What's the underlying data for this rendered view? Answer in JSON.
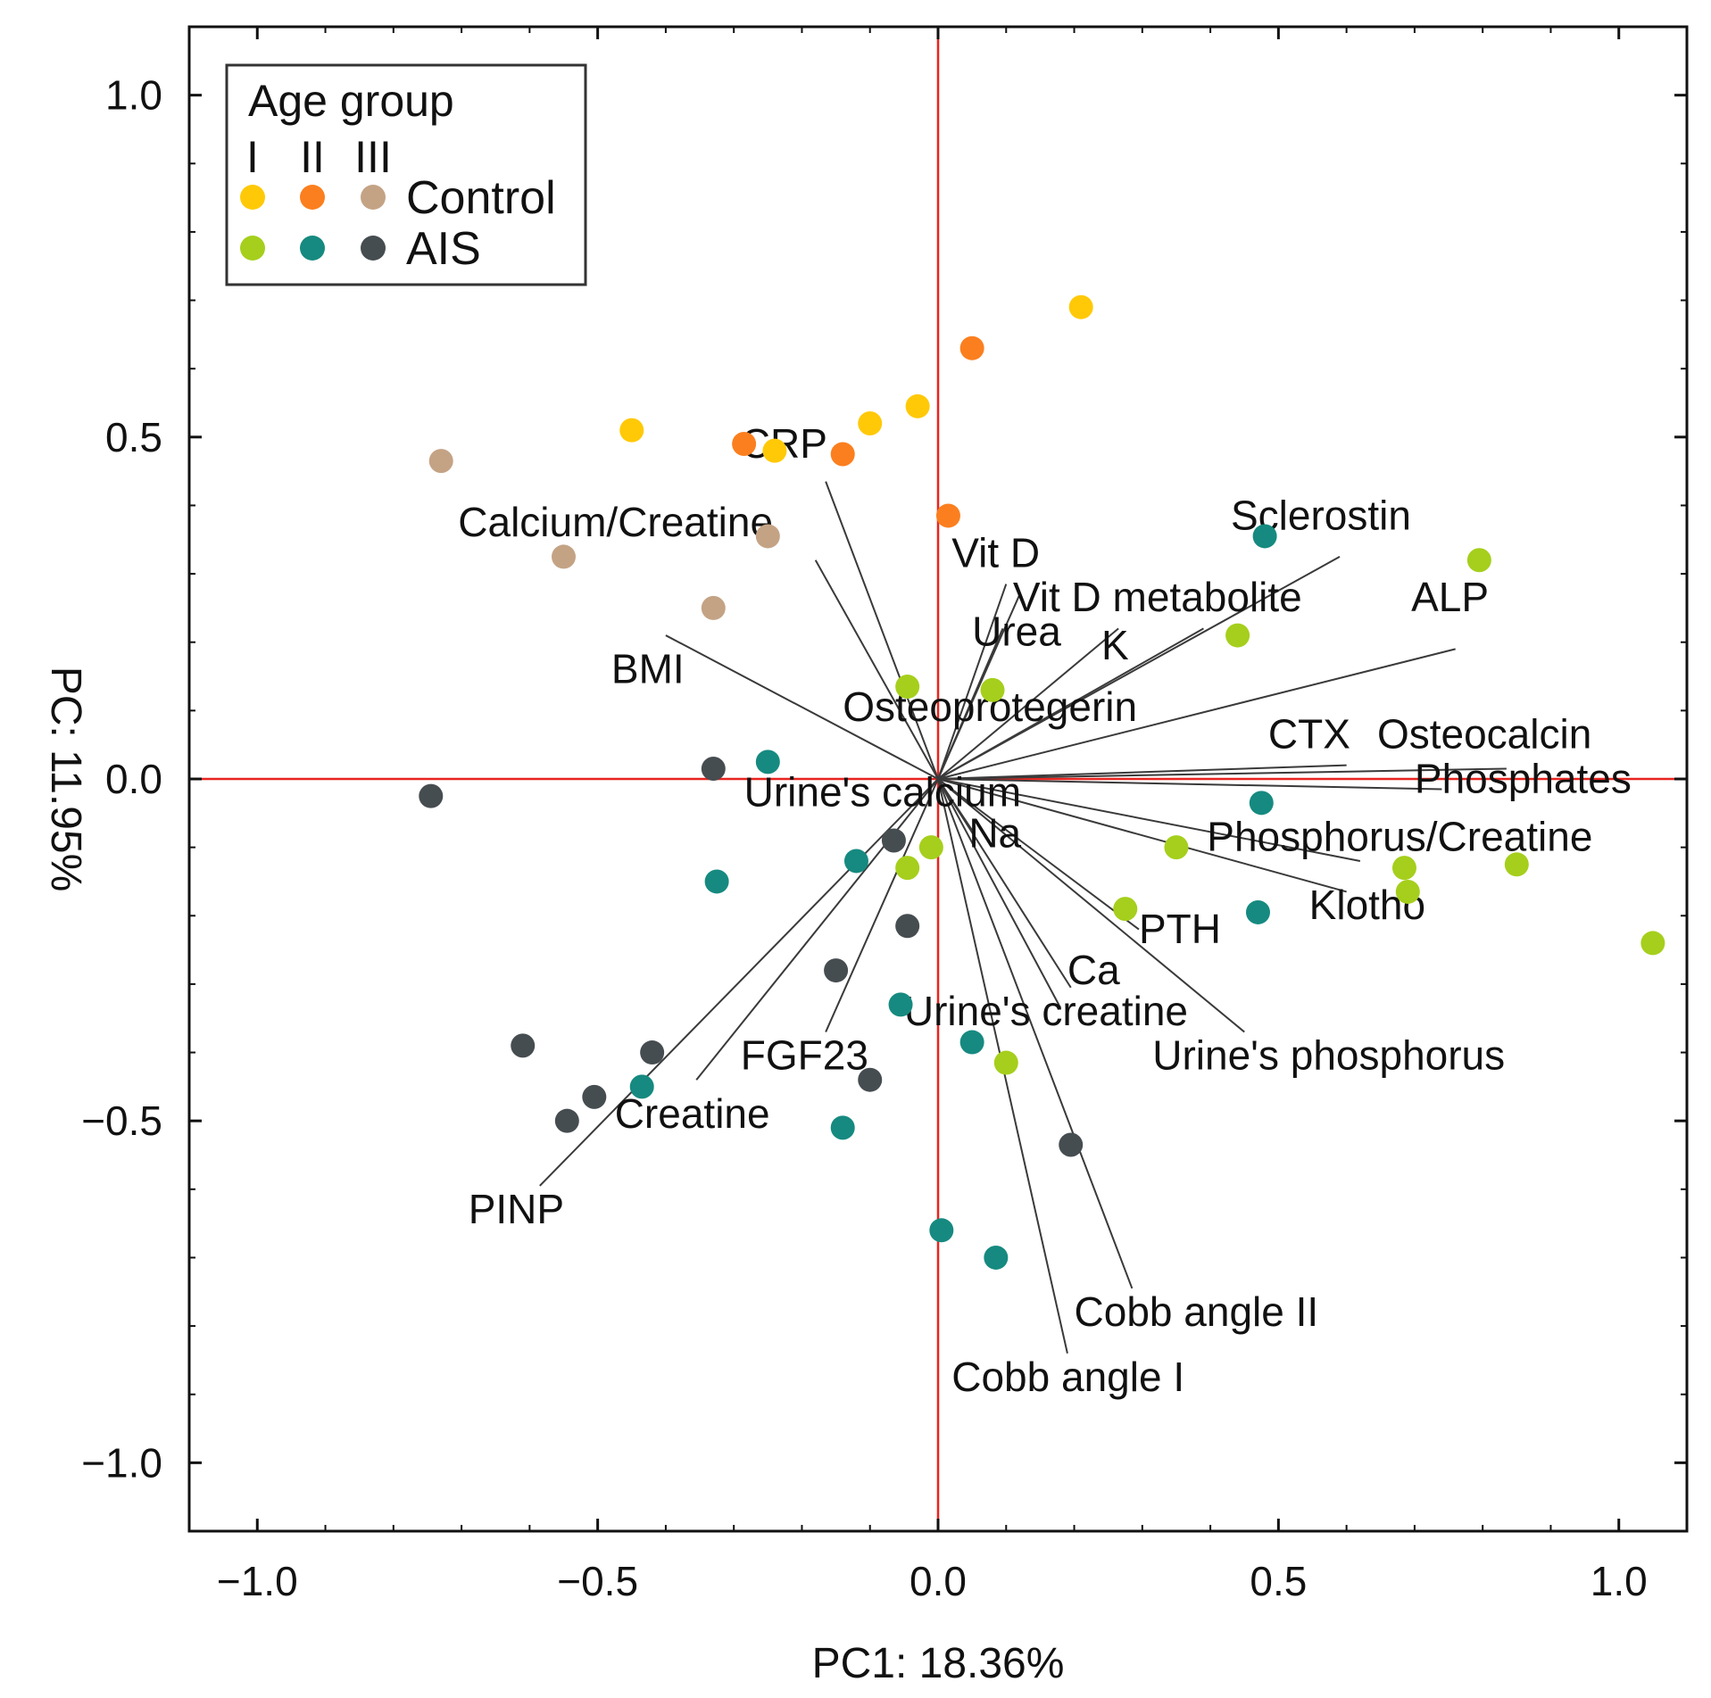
{
  "chart_data": {
    "type": "scatter",
    "subtype": "pca-biplot",
    "xlabel": "PC1: 18.36%",
    "ylabel": "PC: 11.95%",
    "xlim": [
      -1.1,
      1.1
    ],
    "ylim": [
      -1.1,
      1.1
    ],
    "x_ticks": [
      {
        "value": -1.0,
        "label": "−1.0"
      },
      {
        "value": -0.5,
        "label": "−0.5"
      },
      {
        "value": 0.0,
        "label": "0.0"
      },
      {
        "value": 0.5,
        "label": "0.5"
      },
      {
        "value": 1.0,
        "label": "1.0"
      }
    ],
    "y_ticks": [
      {
        "value": 1.0,
        "label": "1.0"
      },
      {
        "value": 0.5,
        "label": "0.5"
      },
      {
        "value": 0.0,
        "label": "0.0"
      },
      {
        "value": -0.5,
        "label": "−0.5"
      },
      {
        "value": -1.0,
        "label": "−1.0"
      }
    ],
    "origin_line_color": "#e8241f",
    "loading_line_color": "#3a3a3a",
    "legend": {
      "title": "Age group",
      "columns": [
        "I",
        "II",
        "III"
      ],
      "rows": [
        {
          "label": "Control",
          "colors": [
            "#ffc907",
            "#fb7f1f",
            "#c4a385"
          ]
        },
        {
          "label": "AIS",
          "colors": [
            "#a5cf1c",
            "#168a80",
            "#464d51"
          ]
        }
      ],
      "position": "top-left"
    },
    "series": [
      {
        "name": "Control I",
        "color": "#ffc907",
        "points": [
          [
            0.21,
            0.69
          ],
          [
            -0.45,
            0.51
          ],
          [
            -0.1,
            0.52
          ],
          [
            -0.03,
            0.545
          ],
          [
            -0.24,
            0.48
          ]
        ]
      },
      {
        "name": "Control II",
        "color": "#fb7f1f",
        "points": [
          [
            0.05,
            0.63
          ],
          [
            -0.285,
            0.49
          ],
          [
            -0.14,
            0.475
          ],
          [
            0.015,
            0.385
          ]
        ]
      },
      {
        "name": "Control III",
        "color": "#c4a385",
        "points": [
          [
            -0.73,
            0.465
          ],
          [
            -0.55,
            0.325
          ],
          [
            -0.25,
            0.355
          ],
          [
            -0.33,
            0.25
          ]
        ]
      },
      {
        "name": "AIS I",
        "color": "#a5cf1c",
        "points": [
          [
            0.795,
            0.32
          ],
          [
            0.44,
            0.21
          ],
          [
            -0.045,
            0.135
          ],
          [
            0.08,
            0.13
          ],
          [
            -0.01,
            -0.1
          ],
          [
            -0.045,
            -0.13
          ],
          [
            0.35,
            -0.1
          ],
          [
            0.685,
            -0.13
          ],
          [
            0.85,
            -0.125
          ],
          [
            0.69,
            -0.165
          ],
          [
            0.275,
            -0.19
          ],
          [
            1.05,
            -0.24
          ],
          [
            0.1,
            -0.415
          ]
        ]
      },
      {
        "name": "AIS II",
        "color": "#168a80",
        "points": [
          [
            0.48,
            0.355
          ],
          [
            -0.25,
            0.025
          ],
          [
            0.475,
            -0.035
          ],
          [
            -0.12,
            -0.12
          ],
          [
            -0.325,
            -0.15
          ],
          [
            0.47,
            -0.195
          ],
          [
            -0.055,
            -0.33
          ],
          [
            0.05,
            -0.385
          ],
          [
            -0.435,
            -0.45
          ],
          [
            -0.14,
            -0.51
          ],
          [
            0.005,
            -0.66
          ],
          [
            0.085,
            -0.7
          ]
        ]
      },
      {
        "name": "AIS III",
        "color": "#464d51",
        "points": [
          [
            -0.33,
            0.015
          ],
          [
            -0.745,
            -0.025
          ],
          [
            -0.065,
            -0.09
          ],
          [
            -0.045,
            -0.215
          ],
          [
            -0.15,
            -0.28
          ],
          [
            -0.61,
            -0.39
          ],
          [
            -0.42,
            -0.4
          ],
          [
            -0.1,
            -0.44
          ],
          [
            -0.505,
            -0.465
          ],
          [
            -0.545,
            -0.5
          ],
          [
            0.195,
            -0.535
          ]
        ]
      }
    ],
    "loadings": [
      {
        "name": "CRP",
        "label": "CRP",
        "end": [
          -0.165,
          0.435
        ],
        "label_at": [
          -0.29,
          0.47
        ],
        "anchor": "start"
      },
      {
        "name": "Calcium/Creatine",
        "label": "Calcium/Creatine",
        "end": [
          -0.18,
          0.32
        ],
        "label_at": [
          -0.705,
          0.355
        ],
        "anchor": "start"
      },
      {
        "name": "BMI",
        "label": "BMI",
        "end": [
          -0.4,
          0.21
        ],
        "label_at": [
          -0.48,
          0.14
        ],
        "anchor": "start"
      },
      {
        "name": "Vit D",
        "label": "Vit D",
        "end": [
          0.1,
          0.285
        ],
        "label_at": [
          0.02,
          0.31
        ],
        "anchor": "start"
      },
      {
        "name": "Vit D metabolite",
        "label": "Vit D metabolite",
        "end": [
          0.12,
          0.27
        ],
        "label_at": [
          0.11,
          0.245
        ],
        "anchor": "start"
      },
      {
        "name": "Urea",
        "label": "Urea",
        "end": [
          0.095,
          0.22
        ],
        "label_at": [
          0.05,
          0.195
        ],
        "anchor": "start"
      },
      {
        "name": "K",
        "label": "K",
        "end": [
          0.265,
          0.22
        ],
        "label_at": [
          0.24,
          0.175
        ],
        "anchor": "start"
      },
      {
        "name": "Osteoprotegerin",
        "label": "Osteoprotegerin",
        "end": [
          0.39,
          0.22
        ],
        "label_at": [
          -0.14,
          0.085
        ],
        "anchor": "start"
      },
      {
        "name": "Sclerostin",
        "label": "Sclerostin",
        "end": [
          0.59,
          0.325
        ],
        "label_at": [
          0.43,
          0.365
        ],
        "anchor": "start"
      },
      {
        "name": "ALP",
        "label": "ALP",
        "end": [
          0.76,
          0.19
        ],
        "label_at": [
          0.695,
          0.245
        ],
        "anchor": "start"
      },
      {
        "name": "CTX",
        "label": "CTX",
        "end": [
          0.6,
          0.02
        ],
        "label_at": [
          0.485,
          0.045
        ],
        "anchor": "start"
      },
      {
        "name": "Osteocalcin",
        "label": "Osteocalcin",
        "end": [
          0.835,
          0.015
        ],
        "label_at": [
          0.645,
          0.045
        ],
        "anchor": "start"
      },
      {
        "name": "Phosphates",
        "label": "Phosphates",
        "end": [
          0.74,
          -0.015
        ],
        "label_at": [
          0.7,
          -0.02
        ],
        "anchor": "start"
      },
      {
        "name": "Phosphorus/Creatine",
        "label": "Phosphorus/Creatine",
        "end": [
          0.62,
          -0.12
        ],
        "label_at": [
          0.395,
          -0.105
        ],
        "anchor": "start"
      },
      {
        "name": "Klotho",
        "label": "Klotho",
        "end": [
          0.6,
          -0.165
        ],
        "label_at": [
          0.545,
          -0.205
        ],
        "anchor": "start"
      },
      {
        "name": "Urine's calcium",
        "label": "Urine's calcium",
        "end": [
          0.0,
          0.0
        ],
        "label_at": [
          -0.285,
          -0.04
        ],
        "anchor": "start"
      },
      {
        "name": "Na",
        "label": "Na",
        "end": [
          0.05,
          -0.075
        ],
        "label_at": [
          0.045,
          -0.1
        ],
        "anchor": "start"
      },
      {
        "name": "PTH",
        "label": "PTH",
        "end": [
          0.295,
          -0.22
        ],
        "label_at": [
          0.295,
          -0.24
        ],
        "anchor": "start"
      },
      {
        "name": "Ca",
        "label": "Ca",
        "end": [
          0.195,
          -0.305
        ],
        "label_at": [
          0.19,
          -0.3
        ],
        "anchor": "start"
      },
      {
        "name": "Urine's creatine",
        "label": "Urine's creatine",
        "end": [
          0.18,
          -0.335
        ],
        "label_at": [
          -0.05,
          -0.36
        ],
        "anchor": "start"
      },
      {
        "name": "Urine's phosphorus",
        "label": "Urine's phosphorus",
        "end": [
          0.45,
          -0.37
        ],
        "label_at": [
          0.315,
          -0.425
        ],
        "anchor": "start"
      },
      {
        "name": "FGF23",
        "label": "FGF23",
        "end": [
          -0.165,
          -0.37
        ],
        "label_at": [
          -0.29,
          -0.425
        ],
        "anchor": "start"
      },
      {
        "name": "Creatine",
        "label": "Creatine",
        "end": [
          -0.355,
          -0.44
        ],
        "label_at": [
          -0.475,
          -0.51
        ],
        "anchor": "start"
      },
      {
        "name": "PINP",
        "label": "PINP",
        "end": [
          -0.585,
          -0.595
        ],
        "label_at": [
          -0.69,
          -0.65
        ],
        "anchor": "start"
      },
      {
        "name": "Cobb angle II",
        "label": "Cobb angle II",
        "end": [
          0.285,
          -0.745
        ],
        "label_at": [
          0.2,
          -0.8
        ],
        "anchor": "start"
      },
      {
        "name": "Cobb angle I",
        "label": "Cobb angle I",
        "end": [
          0.19,
          -0.84
        ],
        "label_at": [
          0.02,
          -0.895
        ],
        "anchor": "start"
      }
    ]
  }
}
